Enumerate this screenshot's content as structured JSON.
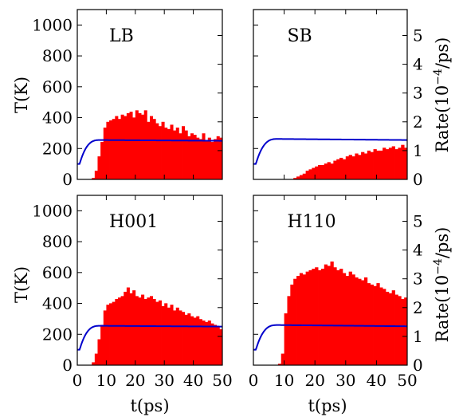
{
  "chart_data": {
    "type": "bar",
    "layout": "2x2 grid of panels",
    "histogram": {
      "bin_width_ps": 1,
      "color": "#ff0000",
      "right_axis": "Rate(10^{-4}/ps)"
    },
    "curve_color": "#0000cc",
    "x_axis": {
      "label": "t(ps)",
      "ticks": [
        0,
        10,
        20,
        30,
        40,
        50
      ],
      "range": [
        0,
        50
      ]
    },
    "y_left": {
      "label": "T(K)",
      "ticks": [
        0,
        200,
        400,
        600,
        800,
        1000
      ],
      "range": [
        0,
        1100
      ]
    },
    "y_right": {
      "label_prefix": "Rate(10",
      "label_exp": "−4",
      "label_suffix": "/ps)",
      "ticks": [
        0,
        1,
        2,
        3,
        4,
        5
      ],
      "range": [
        0,
        5.9
      ]
    },
    "panels": [
      {
        "label": "LB",
        "temperature_K": {
          "start": 100,
          "plateau": 255,
          "end": 250
        },
        "rate_bins": [
          0,
          0,
          0,
          0,
          0,
          0.05,
          0.3,
          0.8,
          1.3,
          1.8,
          2.0,
          2.05,
          2.1,
          2.2,
          2.1,
          2.25,
          2.2,
          2.3,
          2.35,
          2.15,
          2.4,
          2.3,
          2.25,
          2.4,
          2.0,
          2.2,
          2.1,
          1.95,
          1.85,
          2.0,
          1.8,
          1.75,
          1.9,
          1.7,
          1.8,
          1.6,
          1.85,
          1.7,
          1.5,
          1.6,
          1.55,
          1.45,
          1.4,
          1.6,
          1.35,
          1.45,
          1.3,
          1.4,
          1.5,
          1.45
        ]
      },
      {
        "label": "SB",
        "temperature_K": {
          "start": 100,
          "plateau": 262,
          "end": 255
        },
        "rate_bins": [
          0,
          0,
          0,
          0,
          0,
          0,
          0,
          0,
          0,
          0,
          0,
          0,
          0,
          0.05,
          0.1,
          0.15,
          0.2,
          0.3,
          0.35,
          0.4,
          0.45,
          0.5,
          0.5,
          0.55,
          0.6,
          0.55,
          0.65,
          0.7,
          0.75,
          0.7,
          0.8,
          0.85,
          0.8,
          0.9,
          0.85,
          0.95,
          0.9,
          1.0,
          0.95,
          1.05,
          1.0,
          1.0,
          1.1,
          1.05,
          1.1,
          1.15,
          1.05,
          1.1,
          1.2,
          1.1
        ]
      },
      {
        "label": "H001",
        "temperature_K": {
          "start": 100,
          "plateau": 255,
          "end": 250
        },
        "rate_bins": [
          0,
          0,
          0,
          0,
          0,
          0.1,
          0.4,
          0.9,
          1.4,
          1.9,
          2.1,
          2.15,
          2.2,
          2.3,
          2.35,
          2.4,
          2.55,
          2.7,
          2.5,
          2.6,
          2.4,
          2.35,
          2.45,
          2.3,
          2.35,
          2.4,
          2.3,
          2.2,
          2.25,
          2.05,
          2.15,
          2.0,
          2.1,
          1.9,
          2.0,
          1.9,
          1.85,
          1.75,
          1.8,
          1.7,
          1.65,
          1.7,
          1.6,
          1.55,
          1.5,
          1.55,
          1.45,
          1.4,
          1.35,
          1.25
        ]
      },
      {
        "label": "H110",
        "temperature_K": {
          "start": 100,
          "plateau": 260,
          "end": 252
        },
        "rate_bins": [
          0,
          0,
          0,
          0,
          0,
          0,
          0,
          0,
          0.05,
          0.4,
          1.8,
          2.4,
          2.8,
          3.0,
          3.1,
          3.2,
          3.15,
          3.25,
          3.3,
          3.35,
          3.4,
          3.3,
          3.35,
          3.5,
          3.45,
          3.6,
          3.4,
          3.3,
          3.35,
          3.2,
          3.1,
          3.25,
          3.15,
          3.05,
          3.0,
          2.95,
          3.05,
          2.85,
          2.8,
          2.75,
          2.85,
          2.7,
          2.65,
          2.55,
          2.5,
          2.6,
          2.45,
          2.4,
          2.3,
          2.35
        ]
      }
    ]
  }
}
